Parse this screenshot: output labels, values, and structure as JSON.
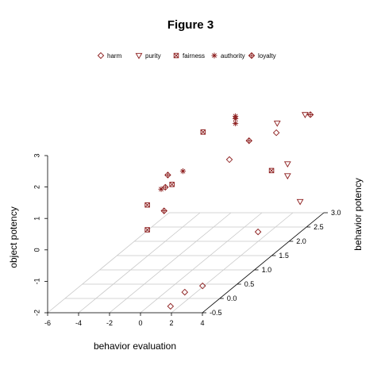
{
  "chart_data": {
    "type": "scatter",
    "title": "Figure 3",
    "xlabel": "behavior evaluation",
    "ylabel": "object potency",
    "zlabel": "behavior potency",
    "x_ticks": [
      "-6",
      "-4",
      "-2",
      "0",
      "2",
      "4"
    ],
    "y_ticks": [
      "-2",
      "-1",
      "0",
      "1",
      "2",
      "3"
    ],
    "z_ticks": [
      "-0.5",
      "0.0",
      "0.5",
      "1.0",
      "1.5",
      "2.0",
      "2.5",
      "3.0"
    ],
    "xlim": [
      -6,
      4
    ],
    "ylim": [
      -2,
      3
    ],
    "zlim": [
      -0.5,
      3.0
    ],
    "grid": true,
    "legend_position": "top",
    "marker_color": "#8b1a1a",
    "series": [
      {
        "name": "harm",
        "marker": "diamond",
        "points": [
          {
            "x": 0.82,
            "y": -2.25,
            "z": 0.0
          },
          {
            "x": 1.74,
            "y": -1.8,
            "z": 0.0
          },
          {
            "x": 2.89,
            "y": -1.6,
            "z": 0.0
          },
          {
            "x": 1.99,
            "y": -1.7,
            "z": 2.0
          },
          {
            "x": 0.14,
            "y": 0.6,
            "z": 2.0
          },
          {
            "x": 2.05,
            "y": 1.0,
            "z": 2.5
          }
        ]
      },
      {
        "name": "purity",
        "marker": "triangle",
        "points": [
          {
            "x": 4.26,
            "y": -0.92,
            "z": 2.2
          },
          {
            "x": 1.66,
            "y": 1.12,
            "z": 2.7
          },
          {
            "x": 3.45,
            "y": 0.28,
            "z": 2.2
          },
          {
            "x": 3.45,
            "y": -0.1,
            "z": 2.2
          },
          {
            "x": 2.79,
            "y": 1.12,
            "z": 3.0
          }
        ]
      },
      {
        "name": "fairness",
        "marker": "boxx",
        "points": [
          {
            "x": -1.8,
            "y": -0.27,
            "z": 0.5
          },
          {
            "x": -1.8,
            "y": 0.52,
            "z": 0.5
          },
          {
            "x": -0.88,
            "y": 0.9,
            "z": 0.8
          },
          {
            "x": -0.44,
            "y": 1.93,
            "z": 1.5
          },
          {
            "x": 2.86,
            "y": 0.25,
            "z": 2.0
          }
        ]
      },
      {
        "name": "authority",
        "marker": "star",
        "points": [
          {
            "x": -1.58,
            "y": 0.75,
            "z": 0.8
          },
          {
            "x": -0.62,
            "y": 1.14,
            "z": 1.0
          },
          {
            "x": 0.53,
            "y": 1.98,
            "z": 2.0
          },
          {
            "x": 0.53,
            "y": 1.9,
            "z": 2.0
          },
          {
            "x": 0.53,
            "y": 1.75,
            "z": 2.0
          }
        ]
      },
      {
        "name": "loyalty",
        "marker": "diamondplus",
        "points": [
          {
            "x": -1.39,
            "y": 0.06,
            "z": 0.8
          },
          {
            "x": -1.31,
            "y": 0.81,
            "z": 0.8
          },
          {
            "x": -1.15,
            "y": 1.2,
            "z": 0.8
          },
          {
            "x": 1.41,
            "y": 1.2,
            "z": 2.0
          },
          {
            "x": 3.13,
            "y": 1.12,
            "z": 3.0
          }
        ]
      }
    ]
  }
}
